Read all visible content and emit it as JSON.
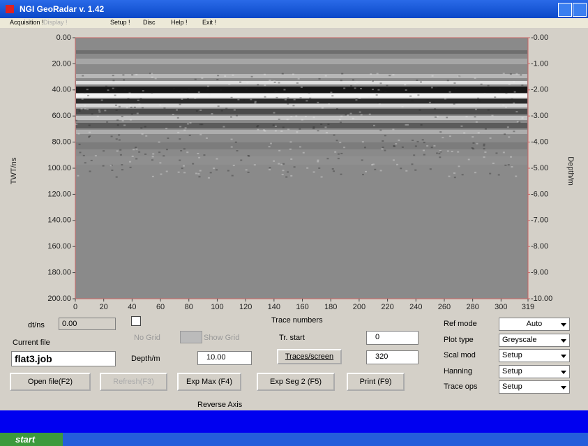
{
  "window": {
    "title": "NGI GeoRadar v. 1.42"
  },
  "menu": [
    "Acquisition !",
    "Display !",
    "Setup !",
    "Disc",
    "Help !",
    "Exit !"
  ],
  "plot": {
    "left_axis_label": "TWT/ns",
    "right_axis_label": "Depth/m",
    "left_ticks": [
      "0.00",
      "20.00",
      "40.00",
      "60.00",
      "80.00",
      "100.00",
      "120.00",
      "140.00",
      "160.00",
      "180.00",
      "200.00"
    ],
    "right_ticks": [
      "-0.00",
      "-1.00",
      "-2.00",
      "-3.00",
      "-4.00",
      "-5.00",
      "-6.00",
      "-7.00",
      "-8.00",
      "-9.00",
      "-10.00"
    ],
    "bottom_ticks": [
      "0",
      "20",
      "40",
      "60",
      "80",
      "100",
      "120",
      "140",
      "160",
      "180",
      "200",
      "220",
      "240",
      "260",
      "280",
      "300",
      "319"
    ]
  },
  "controls": {
    "dt_label": "dt/ns",
    "dt_value": "0.00",
    "current_file_label": "Current file",
    "current_file": "flat3.job",
    "no_grid": "No Grid",
    "show_grid": "Show Grid",
    "depth_label": "Depth/m",
    "depth_value": "10.00",
    "trace_numbers": "Trace numbers",
    "tr_start_label": "Tr. start",
    "tr_start_value": "0",
    "traces_screen": "Traces/screen",
    "traces_screen_value": "320",
    "reverse_axis": "Reverse Axis",
    "settings": [
      {
        "label": "Ref mode",
        "value": "Auto"
      },
      {
        "label": "Plot type",
        "value": "Greyscale"
      },
      {
        "label": "Scal mod",
        "value": "Setup"
      },
      {
        "label": "Hanning",
        "value": "Setup"
      },
      {
        "label": "Trace ops",
        "value": "Setup"
      }
    ],
    "buttons": [
      "Open file(F2)",
      "Refresh(F3)",
      "Exp Max (F4)",
      "Exp Seg 2 (F5)",
      "Print (F9)"
    ]
  },
  "taskbar": {
    "start": "start"
  }
}
